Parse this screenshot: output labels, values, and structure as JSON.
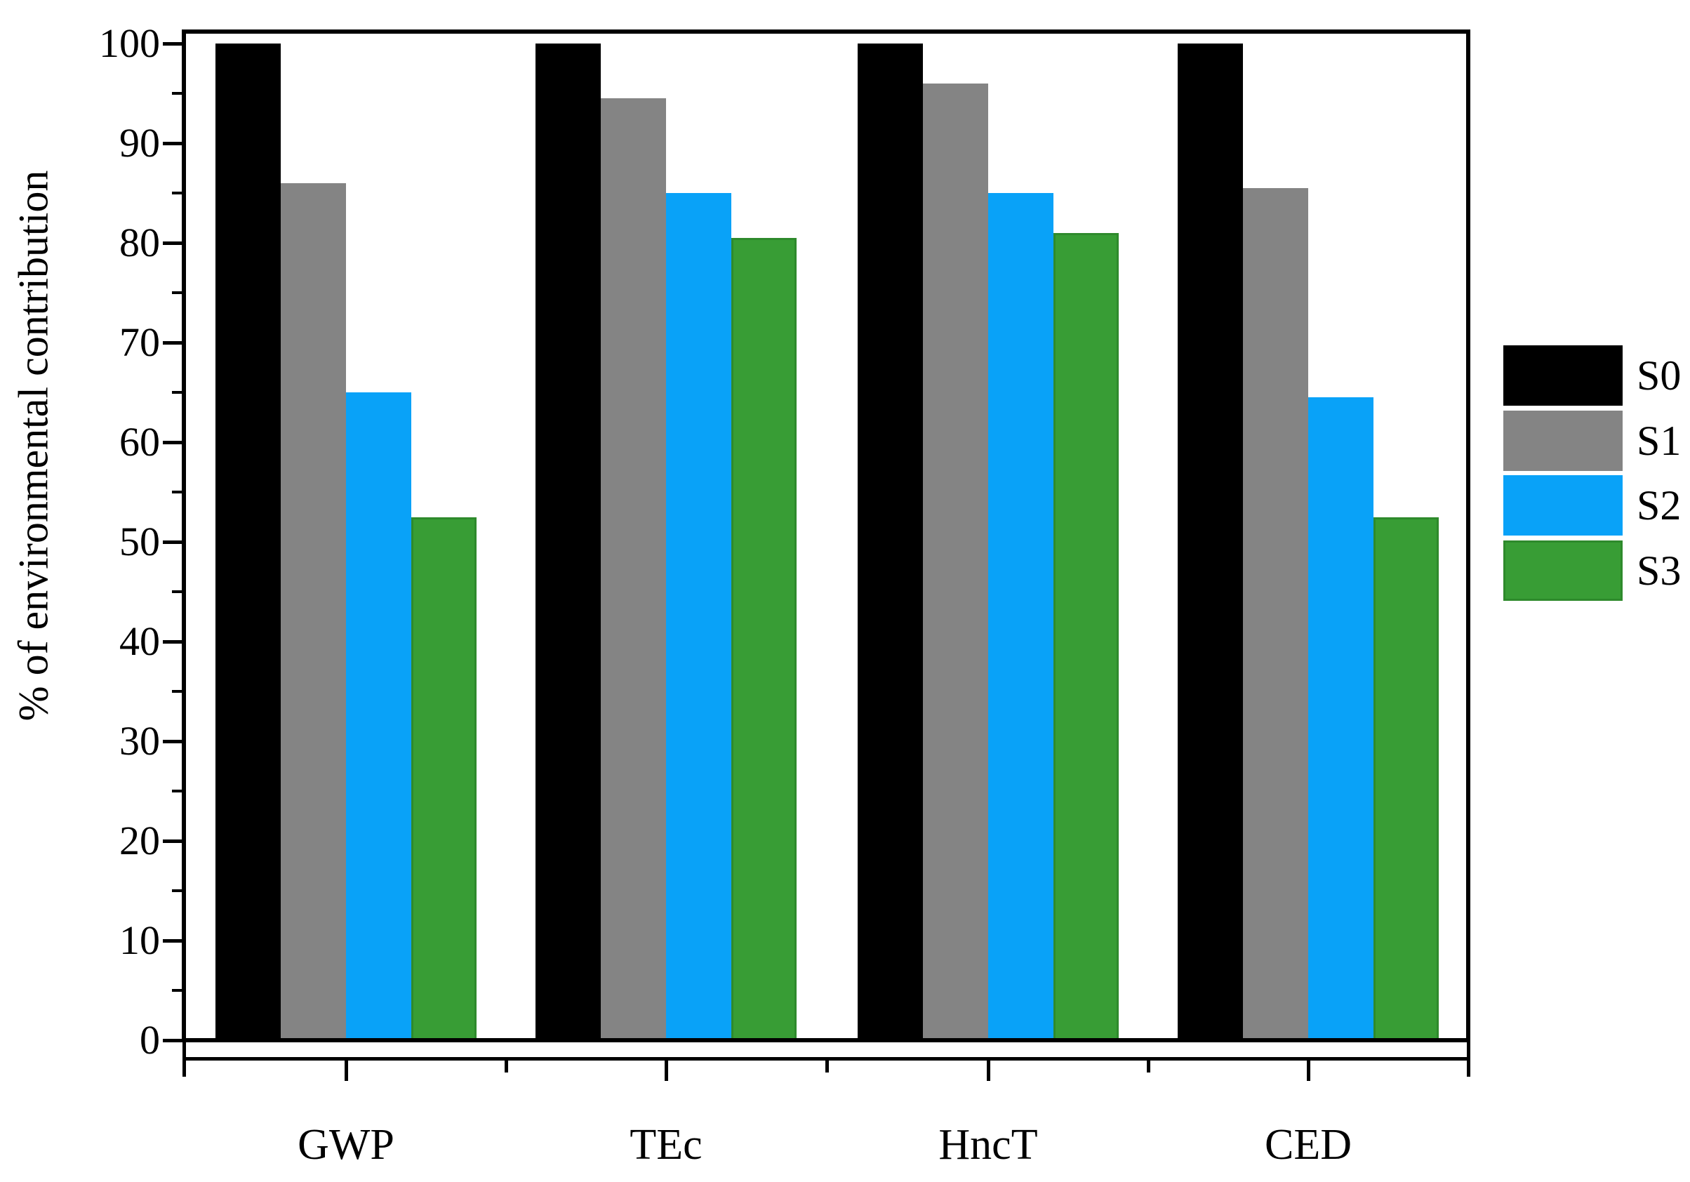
{
  "chart_data": {
    "type": "bar",
    "title": "",
    "xlabel": "",
    "ylabel": "% of environmental contribution",
    "categories": [
      "GWP",
      "TEc",
      "HncT",
      "CED"
    ],
    "series": [
      {
        "name": "S0",
        "color": "#000000",
        "border": null,
        "values": [
          100,
          100,
          100,
          100
        ]
      },
      {
        "name": "S1",
        "color": "#848484",
        "border": null,
        "values": [
          86,
          94.5,
          96,
          85.5
        ]
      },
      {
        "name": "S2",
        "color": "#09A2F8",
        "border": null,
        "values": [
          65,
          85,
          85,
          64.5
        ]
      },
      {
        "name": "S3",
        "color": "#389D35",
        "border": "#2E8A2C",
        "values": [
          52.5,
          80.5,
          81,
          52.5
        ]
      }
    ],
    "ylim": [
      0,
      100
    ],
    "y_major_ticks": [
      0,
      10,
      20,
      30,
      40,
      50,
      60,
      70,
      80,
      90,
      100
    ],
    "y_minor_step": 5,
    "grid": false,
    "legend_position": "right",
    "axis_color": "#000000",
    "background_color": "#FFFFFF"
  }
}
